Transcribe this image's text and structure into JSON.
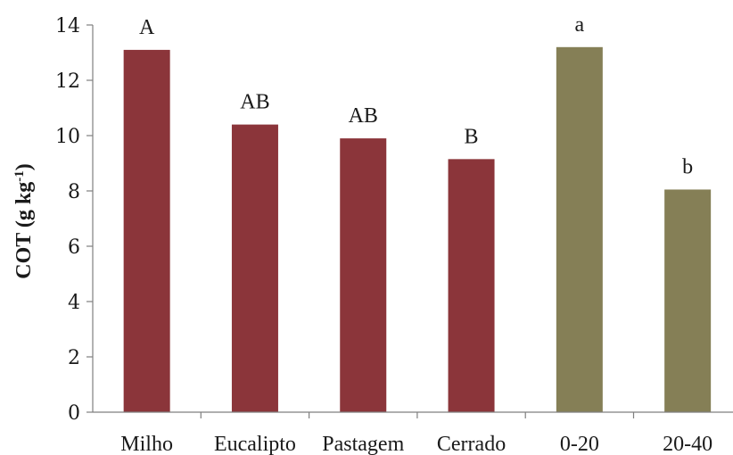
{
  "chart_data": {
    "type": "bar",
    "categories": [
      "Milho",
      "Eucalipto",
      "Pastagem",
      "Cerrado",
      "0-20",
      "20-40"
    ],
    "values": [
      13.1,
      10.4,
      9.9,
      9.15,
      13.2,
      8.05
    ],
    "bar_labels": [
      "A",
      "AB",
      "AB",
      "B",
      "a",
      "b"
    ],
    "bar_colors": [
      "#8b353a",
      "#8b353a",
      "#8b353a",
      "#8b353a",
      "#857f56",
      "#857f56"
    ],
    "ylabel_main": "COT (g kg",
    "ylabel_sup": "-1",
    "ylabel_end": ")",
    "ylim": [
      0,
      14
    ],
    "yticks": [
      "0",
      "2",
      "4",
      "6",
      "8",
      "10",
      "12",
      "14"
    ],
    "grid": false,
    "legend": "none"
  }
}
